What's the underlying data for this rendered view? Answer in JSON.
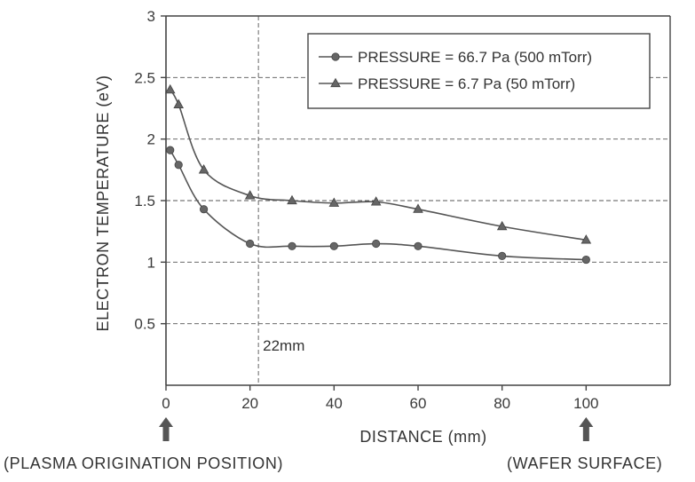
{
  "chart_data": {
    "type": "line",
    "title": "",
    "xlabel": "DISTANCE (mm)",
    "ylabel": "ELECTRON TEMPERATURE (eV)",
    "xlim": [
      0,
      120
    ],
    "ylim": [
      0,
      3
    ],
    "xticks": [
      0,
      20,
      40,
      60,
      80,
      100
    ],
    "yticks": [
      0.5,
      1,
      1.5,
      2,
      2.5,
      3
    ],
    "grid": true,
    "legend_position": "top-right",
    "series": [
      {
        "name": "PRESSURE = 66.7 Pa (500 mTorr)",
        "marker": "circle",
        "x": [
          1,
          3,
          9,
          20,
          30,
          40,
          50,
          60,
          80,
          100
        ],
        "y": [
          1.91,
          1.79,
          1.43,
          1.15,
          1.13,
          1.13,
          1.15,
          1.13,
          1.05,
          1.02
        ]
      },
      {
        "name": "PRESSURE = 6.7 Pa (50 mTorr)",
        "marker": "triangle",
        "x": [
          1,
          3,
          9,
          20,
          30,
          40,
          50,
          60,
          80,
          100
        ],
        "y": [
          2.4,
          2.28,
          1.75,
          1.54,
          1.5,
          1.48,
          1.49,
          1.43,
          1.29,
          1.18
        ]
      }
    ],
    "annotations": [
      {
        "text": "22mm",
        "x": 22
      }
    ]
  },
  "notes": {
    "left": "(PLASMA ORIGINATION POSITION)",
    "right": "(WAFER SURFACE)"
  }
}
